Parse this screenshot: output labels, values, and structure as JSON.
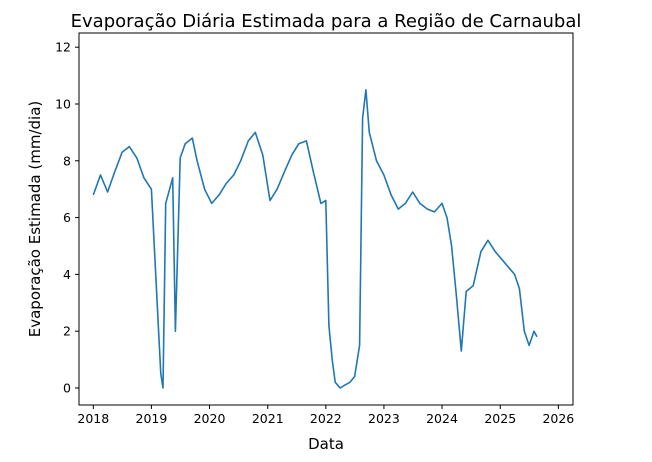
{
  "chart_data": {
    "type": "line",
    "title": "Evaporação Diária Estimada para a Região de Carnaubal",
    "xlabel": "Data",
    "ylabel": "Evaporação Estimada (mm/dia)",
    "xlim": [
      "2017-10-03",
      "2026-04-03"
    ],
    "ylim": [
      -0.6,
      12.5
    ],
    "xticks": [
      "2018",
      "2019",
      "2020",
      "2021",
      "2022",
      "2023",
      "2024",
      "2025",
      "2026"
    ],
    "xtick_dates": [
      "2018-01-01",
      "2019-01-01",
      "2020-01-01",
      "2021-01-01",
      "2022-01-01",
      "2023-01-01",
      "2024-01-01",
      "2025-01-01",
      "2026-01-01"
    ],
    "yticks": [
      "0",
      "2",
      "4",
      "6",
      "8",
      "10",
      "12"
    ],
    "ytick_values": [
      0,
      2,
      4,
      6,
      8,
      10,
      12
    ],
    "grid": false,
    "line_color": "#1f77b4",
    "series": [
      {
        "x": [
          "2018-01-01",
          "2018-02-15",
          "2018-04-01",
          "2018-05-15",
          "2018-07-01",
          "2018-08-15",
          "2018-10-01",
          "2018-11-15",
          "2019-01-01",
          "2019-02-15",
          "2019-03-01",
          "2019-03-15",
          "2019-04-01",
          "2019-05-15",
          "2019-06-01",
          "2019-07-01",
          "2019-08-01",
          "2019-09-15",
          "2019-10-15",
          "2019-12-01",
          "2020-01-15",
          "2020-03-01",
          "2020-04-15",
          "2020-06-01",
          "2020-07-15",
          "2020-09-01",
          "2020-10-15",
          "2020-12-01",
          "2021-01-15",
          "2021-03-01",
          "2021-04-15",
          "2021-06-01",
          "2021-07-15",
          "2021-09-01",
          "2021-10-15",
          "2021-12-01",
          "2022-01-01",
          "2022-01-20",
          "2022-02-10",
          "2022-03-01",
          "2022-04-01",
          "2022-05-01",
          "2022-06-01",
          "2022-07-01",
          "2022-08-01",
          "2022-08-20",
          "2022-09-10",
          "2022-10-01",
          "2022-11-15",
          "2023-01-01",
          "2023-02-15",
          "2023-04-01",
          "2023-05-15",
          "2023-07-01",
          "2023-08-15",
          "2023-10-01",
          "2023-11-15",
          "2024-01-01",
          "2024-02-01",
          "2024-03-01",
          "2024-04-01",
          "2024-05-01",
          "2024-06-01",
          "2024-07-15",
          "2024-09-01",
          "2024-10-15",
          "2024-12-01",
          "2025-01-15",
          "2025-03-01",
          "2025-04-01",
          "2025-05-01",
          "2025-06-01",
          "2025-07-01",
          "2025-08-01",
          "2025-08-20"
        ],
        "y": [
          6.8,
          7.5,
          6.9,
          7.6,
          8.3,
          8.5,
          8.1,
          7.4,
          7.0,
          2.0,
          0.5,
          0.0,
          6.5,
          7.4,
          2.0,
          8.1,
          8.6,
          8.8,
          8.0,
          7.0,
          6.5,
          6.8,
          7.2,
          7.5,
          8.0,
          8.7,
          9.0,
          8.2,
          6.6,
          7.0,
          7.6,
          8.2,
          8.6,
          8.7,
          7.6,
          6.5,
          6.6,
          2.2,
          1.0,
          0.2,
          0.0,
          0.1,
          0.2,
          0.4,
          1.5,
          9.5,
          10.5,
          9.0,
          8.0,
          7.5,
          6.8,
          6.3,
          6.5,
          6.9,
          6.5,
          6.3,
          6.2,
          6.5,
          6.0,
          5.0,
          3.2,
          1.3,
          3.4,
          3.6,
          4.8,
          5.2,
          4.8,
          4.5,
          4.2,
          4.0,
          3.5,
          2.0,
          1.5,
          2.0,
          1.8
        ]
      }
    ]
  }
}
